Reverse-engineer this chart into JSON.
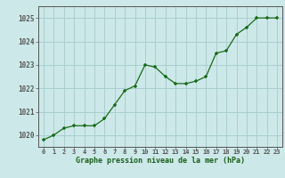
{
  "x": [
    0,
    1,
    2,
    3,
    4,
    5,
    6,
    7,
    8,
    9,
    10,
    11,
    12,
    13,
    14,
    15,
    16,
    17,
    18,
    19,
    20,
    21,
    22,
    23
  ],
  "y": [
    1019.8,
    1020.0,
    1020.3,
    1020.4,
    1020.4,
    1020.4,
    1020.7,
    1021.3,
    1021.9,
    1022.1,
    1023.0,
    1022.9,
    1022.5,
    1022.2,
    1022.2,
    1022.3,
    1022.5,
    1023.5,
    1023.6,
    1024.3,
    1024.6,
    1025.0,
    1025.0,
    1025.0
  ],
  "ylim": [
    1019.5,
    1025.5
  ],
  "yticks": [
    1020,
    1021,
    1022,
    1023,
    1024,
    1025
  ],
  "xticks": [
    0,
    1,
    2,
    3,
    4,
    5,
    6,
    7,
    8,
    9,
    10,
    11,
    12,
    13,
    14,
    15,
    16,
    17,
    18,
    19,
    20,
    21,
    22,
    23
  ],
  "line_color": "#1a6b1a",
  "marker_color": "#1a6b1a",
  "bg_color": "#cce8e8",
  "grid_color": "#aacece",
  "xlabel": "Graphe pression niveau de la mer (hPa)",
  "xlabel_color": "#1a5e1a",
  "tick_label_color": "#1a6b1a",
  "axis_color": "#555555"
}
